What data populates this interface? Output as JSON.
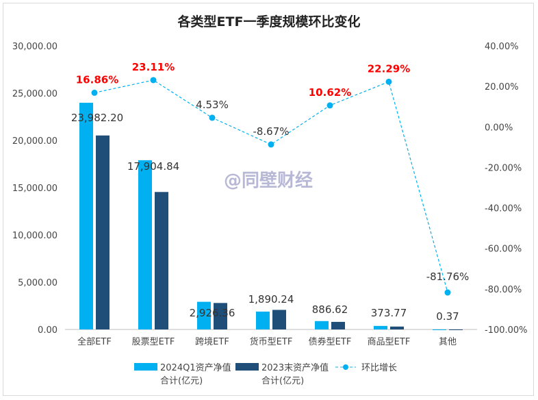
{
  "chart_data": {
    "type": "bar",
    "title": "各类型ETF一季度规模环比变化",
    "watermark": "@同壁财经",
    "categories": [
      "全部ETF",
      "股票型ETF",
      "跨境ETF",
      "货币型ETF",
      "债券型ETF",
      "商品型ETF",
      "其他"
    ],
    "series": [
      {
        "name": "2024Q1资产净值合计(亿元)",
        "type": "bar",
        "axis": "left",
        "color": "#00b0f0",
        "values": [
          23982.2,
          17904.84,
          2926.36,
          1890.24,
          886.62,
          373.77,
          0.37
        ],
        "labels": [
          "23,982.20",
          "17,904.84",
          "2,926.36",
          "1,890.24",
          "886.62",
          "373.77",
          "0.37"
        ]
      },
      {
        "name": "2023末资产净值合计(亿元)",
        "type": "bar",
        "axis": "right-none",
        "color": "#1f4e79",
        "values": [
          20522,
          14544,
          2800,
          2070,
          802,
          306,
          2
        ]
      },
      {
        "name": "环比增长",
        "type": "line",
        "axis": "right",
        "color": "#00b0f0",
        "values": [
          16.86,
          23.11,
          4.53,
          -8.67,
          10.62,
          22.29,
          -81.76
        ],
        "labels": [
          "16.86%",
          "23.11%",
          "4.53%",
          "-8.67%",
          "10.62%",
          "22.29%",
          "-81.76%"
        ],
        "label_highlight": [
          true,
          true,
          false,
          false,
          true,
          true,
          false
        ],
        "highlight_color": "#ff0000"
      }
    ],
    "left_axis": {
      "ylim": [
        0,
        30000
      ],
      "ticks": [
        "0.00",
        "5,000.00",
        "10,000.00",
        "15,000.00",
        "20,000.00",
        "25,000.00",
        "30,000.00"
      ]
    },
    "right_axis": {
      "ylim": [
        -100,
        40
      ],
      "ticks": [
        "-100.00%",
        "-80.00%",
        "-60.00%",
        "-40.00%",
        "-20.00%",
        "0.00%",
        "20.00%",
        "40.00%"
      ]
    },
    "grid": false,
    "legend": "bottom",
    "legend_lines": [
      [
        "2024Q1资产净值",
        "合计(亿元)"
      ],
      [
        "2023末资产净值",
        "合计(亿元)"
      ],
      [
        "环比增长"
      ]
    ]
  }
}
